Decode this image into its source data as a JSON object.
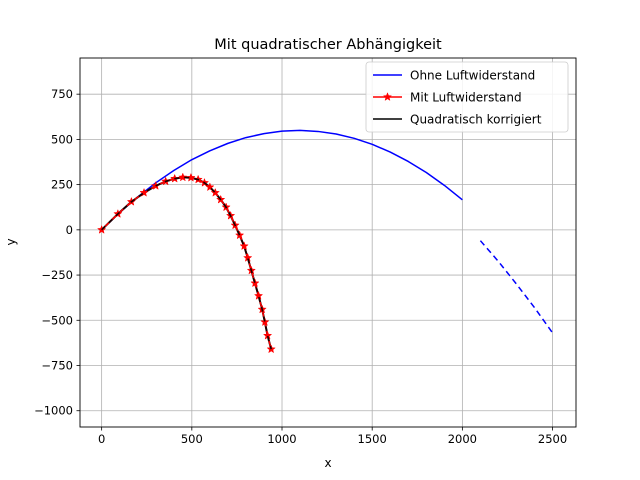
{
  "chart_data": {
    "type": "line",
    "title": "Mit quadratischer Abhängigkeit",
    "xlabel": "x",
    "ylabel": "y",
    "xlim": [
      -120,
      2630
    ],
    "ylim": [
      -1090,
      950
    ],
    "xticks": [
      0,
      500,
      1000,
      1500,
      2000,
      2500
    ],
    "yticks": [
      -1000,
      -750,
      -500,
      -250,
      0,
      250,
      500,
      750
    ],
    "grid": true,
    "legend": "top-right",
    "series": [
      {
        "name": "Ohne Luftwiderstand",
        "color": "#0000ff",
        "style": "solid",
        "marker": "none",
        "x": [
          0,
          100,
          200,
          300,
          400,
          500,
          600,
          700,
          800,
          900,
          1000,
          1100,
          1200,
          1300,
          1400,
          1500,
          1600,
          1700,
          1800,
          1900,
          2000
        ],
        "y": [
          0,
          96,
          182,
          260,
          328,
          388,
          437,
          478,
          510,
          532,
          546,
          550,
          544,
          530,
          506,
          473,
          430,
          378,
          317,
          246,
          166
        ]
      },
      {
        "name": "",
        "color": "#0000ff",
        "style": "dashed",
        "marker": "none",
        "x": [
          2100,
          2200,
          2300,
          2400,
          2500
        ],
        "y": [
          -60,
          -175,
          -300,
          -430,
          -570
        ]
      },
      {
        "name": "Mit Luftwiderstand",
        "color": "#ff0000",
        "style": "solid",
        "marker": "star",
        "x": [
          0,
          90,
          165,
          235,
          300,
          355,
          405,
          450,
          495,
          535,
          570,
          600,
          630,
          660,
          690,
          715,
          740,
          765,
          790,
          810,
          830,
          850,
          870,
          890,
          905,
          920,
          940
        ],
        "y": [
          0,
          88,
          155,
          205,
          243,
          268,
          283,
          290,
          288,
          278,
          260,
          236,
          205,
          167,
          125,
          78,
          25,
          -30,
          -90,
          -155,
          -225,
          -295,
          -365,
          -440,
          -510,
          -585,
          -660
        ]
      },
      {
        "name": "Quadratisch korrigiert",
        "color": "#000000",
        "style": "solid",
        "marker": "none",
        "x": [
          0,
          90,
          165,
          235,
          300,
          355,
          405,
          450,
          495,
          535,
          570,
          600,
          630,
          660,
          690,
          715,
          740,
          765,
          790,
          810,
          830,
          850,
          870,
          890,
          905,
          920,
          940
        ],
        "y": [
          0,
          88,
          155,
          205,
          243,
          268,
          283,
          290,
          288,
          278,
          260,
          236,
          205,
          167,
          125,
          78,
          25,
          -30,
          -90,
          -155,
          -225,
          -295,
          -365,
          -440,
          -510,
          -585,
          -660
        ]
      }
    ]
  }
}
